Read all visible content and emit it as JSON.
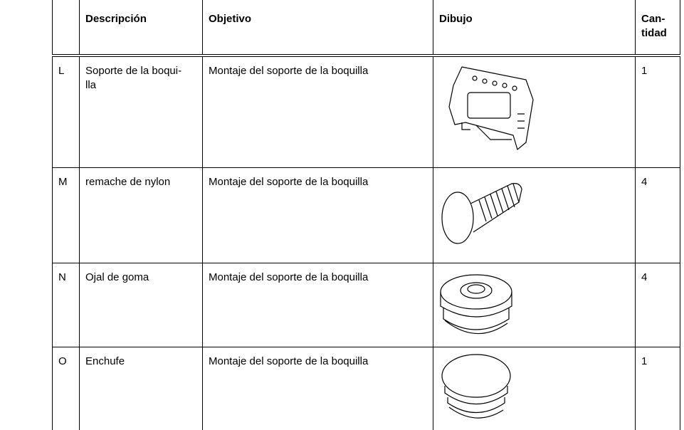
{
  "table": {
    "header": {
      "description": "Descripción",
      "objective": "Objetivo",
      "drawing": "Dibujo",
      "quantity": [
        "Can-",
        "tidad"
      ]
    },
    "rows": [
      {
        "code": "L",
        "description": [
          "Soporte de la boqui-",
          "lla"
        ],
        "objective": "Montaje del soporte de la boquilla",
        "quantity": 1
      },
      {
        "code": "M",
        "description": [
          "remache de nylon"
        ],
        "objective": "Montaje del soporte de la boquilla",
        "quantity": 4
      },
      {
        "code": "N",
        "description": [
          "Ojal de goma"
        ],
        "objective": "Montaje del soporte de la boquilla",
        "quantity": 4
      },
      {
        "code": "O",
        "description": [
          "Enchufe"
        ],
        "objective": "Montaje del soporte de la boquilla",
        "quantity": 1
      }
    ]
  }
}
